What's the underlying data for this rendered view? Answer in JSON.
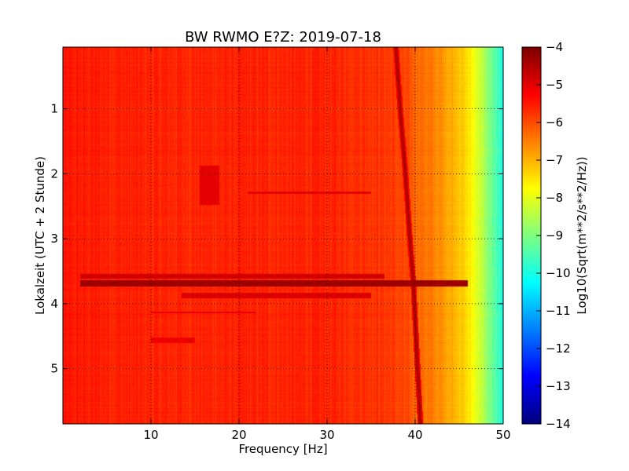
{
  "chart_data": {
    "type": "heatmap",
    "title": "BW RWMO E?Z: 2019-07-18",
    "xlabel": "Frequency [Hz]",
    "ylabel": "Lokalzeit (UTC + 2 Stunde)",
    "xlim": [
      0,
      50
    ],
    "ylim": [
      5.85,
      0.05
    ],
    "y_axis_inverted": true,
    "x_ticks": [
      10,
      20,
      30,
      40,
      50
    ],
    "y_ticks": [
      1,
      2,
      3,
      4,
      5
    ],
    "grid": true,
    "grid_style": "dotted black",
    "colormap": "jet",
    "colorbar": {
      "label": "Log10(Sqrt(m**2/s**2/Hz))",
      "range": [
        -14,
        -4
      ],
      "ticks": [
        -4,
        -5,
        -6,
        -7,
        -8,
        -9,
        -10,
        -11,
        -12,
        -13,
        -14
      ],
      "tick_labels": [
        "−4",
        "−5",
        "−6",
        "−7",
        "−8",
        "−9",
        "−10",
        "−11",
        "−12",
        "−13",
        "−14"
      ]
    },
    "background_level_vs_frequency": {
      "frequency_hz": [
        0,
        10,
        20,
        30,
        35,
        37,
        38,
        39,
        40,
        42,
        44,
        45,
        46,
        47,
        48,
        49,
        50
      ],
      "log10_amplitude": [
        -5.5,
        -5.6,
        -5.6,
        -5.6,
        -5.7,
        -5.8,
        -5.9,
        -6.0,
        -6.2,
        -6.5,
        -6.9,
        -7.1,
        -7.5,
        -8.0,
        -8.7,
        -9.4,
        -10.0
      ]
    },
    "features": [
      {
        "kind": "strong broadband band",
        "time_start": 3.64,
        "time_end": 3.74,
        "freq_start": 2.0,
        "freq_end": 46.0,
        "log10_amplitude": -4.3
      },
      {
        "kind": "broadband band",
        "time_start": 3.54,
        "time_end": 3.62,
        "freq_start": 2.0,
        "freq_end": 36.5,
        "log10_amplitude": -4.8
      },
      {
        "kind": "band",
        "time_start": 3.83,
        "time_end": 3.92,
        "freq_start": 13.5,
        "freq_end": 35.0,
        "log10_amplitude": -4.9
      },
      {
        "kind": "band",
        "time_start": 4.12,
        "time_end": 4.15,
        "freq_start": 10.0,
        "freq_end": 22.0,
        "log10_amplitude": -5.0
      },
      {
        "kind": "band",
        "time_start": 4.52,
        "time_end": 4.6,
        "freq_start": 10.0,
        "freq_end": 15.0,
        "log10_amplitude": -5.1
      },
      {
        "kind": "patch",
        "time_start": 1.88,
        "time_end": 2.48,
        "freq_start": 15.5,
        "freq_end": 17.8,
        "log10_amplitude": -5.0
      },
      {
        "kind": "band",
        "time_start": 2.27,
        "time_end": 2.31,
        "freq_start": 21.0,
        "freq_end": 35.0,
        "log10_amplitude": -5.0
      }
    ],
    "drifting_line": {
      "kind": "narrow drifting spectral line",
      "time": [
        0.0,
        1.0,
        2.0,
        3.0,
        3.7,
        4.5,
        5.85
      ],
      "frequency_hz": [
        37.8,
        38.3,
        38.9,
        39.4,
        39.8,
        40.1,
        40.6
      ],
      "log10_amplitude": -4.5
    }
  }
}
